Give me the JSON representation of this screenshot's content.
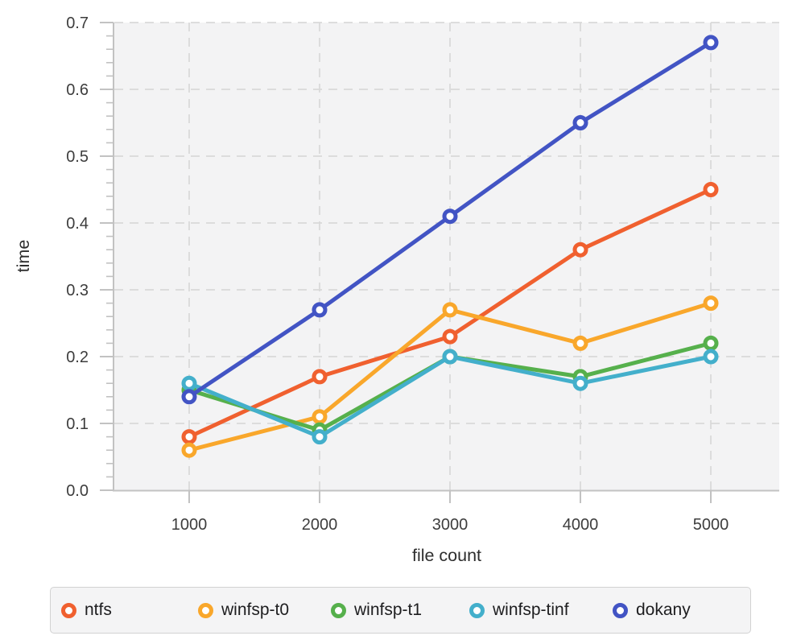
{
  "chart_data": {
    "type": "line",
    "title": "",
    "xlabel": "file count",
    "ylabel": "time",
    "x": [
      1000,
      2000,
      3000,
      4000,
      5000
    ],
    "xtick_labels": [
      "1000",
      "2000",
      "3000",
      "4000",
      "5000"
    ],
    "ytick_labels": [
      "0.0",
      "0.1",
      "0.2",
      "0.3",
      "0.4",
      "0.5",
      "0.6",
      "0.7"
    ],
    "ylim": [
      0,
      0.7
    ],
    "y_major_step": 0.1,
    "y_minor_step": 0.02,
    "grid": "dashed, horizontal and vertical at major ticks",
    "legend_position": "bottom",
    "marker": "open-circle",
    "series": [
      {
        "name": "ntfs",
        "color": "#F0602F",
        "values": [
          0.08,
          0.17,
          0.23,
          0.36,
          0.45
        ]
      },
      {
        "name": "winfsp-t0",
        "color": "#F9A72B",
        "values": [
          0.06,
          0.11,
          0.27,
          0.22,
          0.28
        ]
      },
      {
        "name": "winfsp-t1",
        "color": "#56B04C",
        "values": [
          0.15,
          0.09,
          0.2,
          0.17,
          0.22
        ]
      },
      {
        "name": "winfsp-tinf",
        "color": "#43AFCB",
        "values": [
          0.16,
          0.08,
          0.2,
          0.16,
          0.2
        ]
      },
      {
        "name": "dokany",
        "color": "#4254C4",
        "values": [
          0.14,
          0.27,
          0.41,
          0.55,
          0.67
        ]
      }
    ]
  },
  "colors": {
    "plot_bg": "#f3f3f4",
    "grid": "#d9d9d9",
    "axis": "#c2c2c2",
    "tick_text": "#3d3d3d",
    "legend_bg": "#f4f4f5",
    "legend_border": "#d2d2d2"
  }
}
